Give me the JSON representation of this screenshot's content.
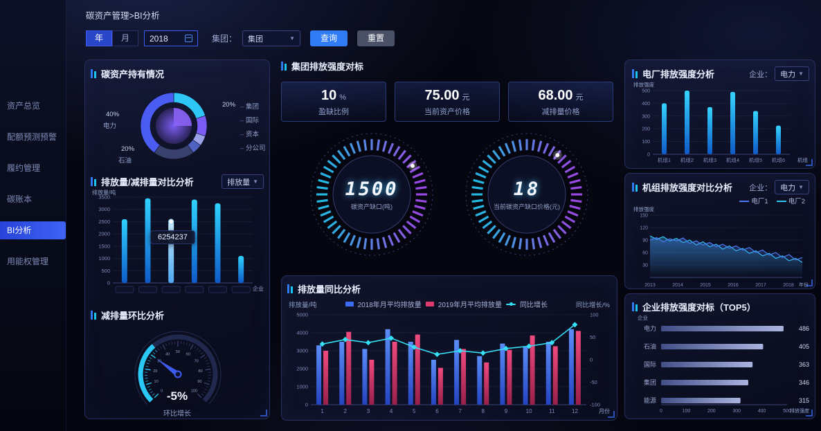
{
  "breadcrumb": "碳资产管理>BI分析",
  "sidebar": {
    "items": [
      {
        "label": "资产总览"
      },
      {
        "label": "配额预测预警"
      },
      {
        "label": "履约管理"
      },
      {
        "label": "碳账本"
      },
      {
        "label": "BI分析"
      },
      {
        "label": "用能权管理"
      }
    ]
  },
  "filters": {
    "year_tab": "年",
    "month_tab": "月",
    "year_value": "2018",
    "group_label": "集团：",
    "group_value": "集团",
    "query_button": "查询",
    "reset_button": "重置"
  },
  "left_panel": {
    "holdings": {
      "title": "碳资产持有情况",
      "chart_data": {
        "type": "pie",
        "slices": [
          {
            "name": "集团",
            "pct": 20,
            "color": "#2EC6F5"
          },
          {
            "name": "国际",
            "pct": 10,
            "color": "#7A5CF5"
          },
          {
            "name": "资本",
            "pct": 5,
            "color": "#99A2E8"
          },
          {
            "name": "分公司",
            "pct": 5,
            "color": "#5163C0"
          },
          {
            "name": "石油",
            "pct": 20,
            "color": "#3A416E"
          },
          {
            "name": "电力",
            "pct": 40,
            "color": "#4A5CF2"
          }
        ]
      }
    },
    "compare": {
      "title": "排放量/减排量对比分析",
      "select_value": "排放量",
      "chart_data": {
        "type": "bar",
        "ylabel": "排放量/吨",
        "xlabel": "企业",
        "categories": [
          "",
          "",
          "",
          "",
          "",
          ""
        ],
        "values": [
          2600,
          3450,
          2500,
          3400,
          3250,
          1100
        ],
        "ylim": [
          0,
          3500
        ],
        "highlight_index": 2,
        "tooltip": "6254237"
      }
    },
    "mom": {
      "title": "减排量环比分析",
      "chart_data": {
        "type": "gauge",
        "min": 0,
        "max": 100,
        "value_text": "-5%",
        "label": "环比增长"
      }
    }
  },
  "center": {
    "benchmark": {
      "title": "集团排放强度对标",
      "stats": [
        {
          "value": "10",
          "unit": "%",
          "label": "盈缺比例"
        },
        {
          "value": "75.00",
          "unit": "元",
          "label": "当前资产价格"
        },
        {
          "value": "68.00",
          "unit": "元",
          "label": "减排量价格"
        }
      ],
      "gauges": [
        {
          "value": "1500",
          "label": "碳资产缺口(吨)"
        },
        {
          "value": "18",
          "label": "当前碳资产缺口价格(元)"
        }
      ]
    },
    "yoy": {
      "title": "排放量同比分析",
      "chart_data": {
        "type": "bar+line",
        "ylabel_left": "排放量/吨",
        "ylabel_right": "同比增长/%",
        "xlabel": "月份",
        "categories": [
          "1",
          "2",
          "3",
          "4",
          "5",
          "6",
          "7",
          "8",
          "9",
          "10",
          "11",
          "12"
        ],
        "ylim_left": [
          0,
          5000
        ],
        "ylim_right": [
          -100,
          100
        ],
        "series": [
          {
            "name": "2018年月平均排放量",
            "color": "#3D6DF5",
            "values": [
              3300,
              3500,
              3100,
              4200,
              3500,
              2500,
              3600,
              2700,
              3400,
              3200,
              3500,
              4200
            ]
          },
          {
            "name": "2019年月平均排放量",
            "color": "#E0396B",
            "values": [
              3000,
              4050,
              2500,
              3500,
              3900,
              2050,
              3100,
              2350,
              3050,
              3850,
              3250,
              4100
            ]
          }
        ],
        "line": {
          "name": "同比增长",
          "color": "#35E0F5",
          "values": [
            35,
            45,
            38,
            48,
            28,
            12,
            20,
            15,
            25,
            30,
            38,
            78
          ]
        }
      }
    }
  },
  "right_panels": {
    "plant": {
      "title": "电厂排放强度分析",
      "select_label": "企业：",
      "select_value": "电力",
      "chart_data": {
        "type": "bar",
        "ylabel": "排放强度",
        "xlabel": "机组",
        "categories": [
          "机组1",
          "机组2",
          "机组3",
          "机组4",
          "机组5",
          "机组6"
        ],
        "values": [
          400,
          500,
          370,
          490,
          340,
          225
        ],
        "ylim": [
          0,
          500
        ]
      }
    },
    "unit_compare": {
      "title": "机组排放强度对比分析",
      "select_label": "企业：",
      "select_value": "电力",
      "chart_data": {
        "type": "line",
        "ylabel": "排放强度",
        "xlabel": "年份",
        "x_ticks": [
          "2013",
          "2014",
          "2015",
          "2016",
          "2017",
          "2018"
        ],
        "ylim": [
          0,
          160
        ],
        "yticks": [
          30,
          60,
          90,
          120,
          150
        ],
        "series": [
          {
            "name": "电厂1",
            "color": "#4C7BF5",
            "values": [
              90,
              96,
              86,
              93,
              88,
              95,
              82,
              88,
              78,
              84,
              74,
              80,
              70,
              76,
              66,
              72,
              60,
              66,
              54,
              60,
              48,
              55,
              42,
              48
            ]
          },
          {
            "name": "电厂2",
            "color": "#2EC6F5",
            "values": [
              100,
              92,
              98,
              88,
              94,
              84,
              90,
              78,
              86,
              74,
              80,
              68,
              76,
              64,
              70,
              58,
              64,
              52,
              58,
              46,
              52,
              40,
              46,
              36
            ]
          }
        ]
      }
    },
    "top5": {
      "title": "企业排放强度对标（TOP5）",
      "chart_data": {
        "type": "hbar",
        "ylabel": "企业",
        "xlabel": "排放强度",
        "categories": [
          "电力",
          "石油",
          "国际",
          "集团",
          "能源"
        ],
        "values": [
          486,
          405,
          363,
          346,
          315
        ],
        "xlim": [
          0,
          500
        ],
        "xticks": [
          0,
          100,
          200,
          300,
          400,
          500
        ]
      }
    }
  }
}
